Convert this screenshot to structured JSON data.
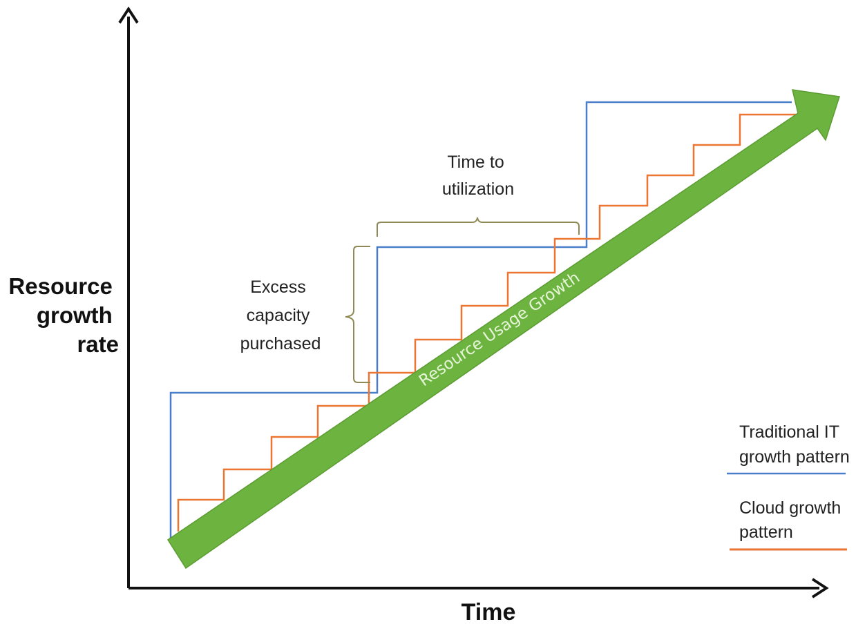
{
  "y_axis": {
    "label_lines": [
      "Resource",
      "growth",
      "rate"
    ]
  },
  "x_axis": {
    "label": "Time"
  },
  "annotations": {
    "time_to_utilization": [
      "Time to",
      "utilization"
    ],
    "excess_capacity": [
      "Excess",
      "capacity",
      "purchased"
    ],
    "resource_usage_growth": "Resource Usage Growth"
  },
  "legend": {
    "traditional": [
      "Traditional IT",
      "growth pattern"
    ],
    "cloud": [
      "Cloud growth",
      "pattern"
    ]
  },
  "colors": {
    "traditional": "#4a7ec8",
    "cloud": "#ed7532",
    "usage_arrow": "#6cb33f",
    "usage_arrow_edge": "#5c9c33",
    "brace": "#8f8a55",
    "axis": "#111111"
  }
}
